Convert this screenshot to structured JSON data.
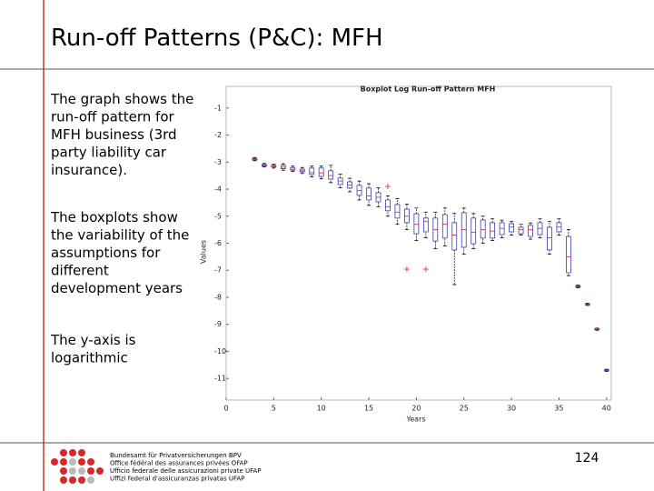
{
  "slide": {
    "title": "Run-off Patterns (P&C): MFH",
    "body": [
      [
        "The graph shows the",
        "run-off pattern for",
        "MFH business (3rd",
        "party liability car",
        "insurance)."
      ],
      [
        "The boxplots show",
        "the variability of the",
        "assumptions for",
        "different",
        "development years"
      ],
      [
        "The y-axis is",
        "logarithmic"
      ]
    ],
    "footer": [
      "Bundesamt für Privatversicherungen BPV",
      "Office fédéral des assurances privées OFAP",
      "Ufficio federale delle assicurazioni private UFAP",
      "Uffizi federal d'assicuranzas privatas UFAP"
    ],
    "page_number": "124"
  },
  "chart_data": {
    "type": "boxplot",
    "title": "Boxplot Log Run-off Pattern MFH",
    "xlabel": "Years",
    "ylabel": "Values",
    "x": [
      3,
      4,
      5,
      6,
      7,
      8,
      9,
      10,
      11,
      12,
      13,
      14,
      15,
      16,
      17,
      18,
      19,
      20,
      21,
      22,
      23,
      24,
      25,
      26,
      27,
      28,
      29,
      30,
      31,
      32,
      33,
      34,
      35,
      36,
      37,
      38,
      39,
      40
    ],
    "whisker_low": [
      -2.95,
      -3.18,
      -3.22,
      -3.3,
      -3.35,
      -3.42,
      -3.55,
      -3.62,
      -3.76,
      -3.95,
      -4.1,
      -4.4,
      -4.6,
      -4.65,
      -5.0,
      -5.3,
      -5.5,
      -5.9,
      -5.8,
      -6.2,
      -6.1,
      -7.53,
      -6.4,
      -6.2,
      -6.0,
      -5.9,
      -5.8,
      -5.7,
      -5.7,
      -5.85,
      -5.8,
      -6.4,
      -5.7,
      -7.2,
      -7.65,
      -8.3,
      -9.22,
      -10.74
    ],
    "q1": [
      -2.92,
      -3.15,
      -3.18,
      -3.24,
      -3.3,
      -3.36,
      -3.46,
      -3.53,
      -3.63,
      -3.83,
      -3.96,
      -4.23,
      -4.4,
      -4.47,
      -4.8,
      -5.07,
      -5.24,
      -5.65,
      -5.58,
      -5.92,
      -5.81,
      -6.25,
      -6.15,
      -6.02,
      -5.81,
      -5.81,
      -5.68,
      -5.58,
      -5.65,
      -5.75,
      -5.68,
      -6.25,
      -5.58,
      -7.09,
      -7.62,
      -8.28,
      -9.2,
      -10.72
    ],
    "median": [
      -2.89,
      -3.12,
      -3.15,
      -3.19,
      -3.26,
      -3.32,
      -3.39,
      -3.4,
      -3.5,
      -3.7,
      -3.85,
      -4.05,
      -4.25,
      -4.3,
      -4.65,
      -4.85,
      -5.0,
      -5.3,
      -5.2,
      -5.5,
      -5.3,
      -5.7,
      -5.5,
      -5.6,
      -5.5,
      -5.55,
      -5.45,
      -5.4,
      -5.5,
      -5.5,
      -5.45,
      -5.8,
      -5.4,
      -6.5,
      -7.6,
      -8.27,
      -9.18,
      -10.7
    ],
    "q3": [
      -2.86,
      -3.09,
      -3.12,
      -3.12,
      -3.2,
      -3.26,
      -3.22,
      -3.22,
      -3.32,
      -3.59,
      -3.73,
      -3.86,
      -3.96,
      -4.13,
      -4.4,
      -4.57,
      -4.74,
      -4.91,
      -5.07,
      -5.07,
      -4.94,
      -5.24,
      -4.87,
      -5.07,
      -5.14,
      -5.24,
      -5.24,
      -5.28,
      -5.41,
      -5.34,
      -5.24,
      -5.41,
      -5.24,
      -5.75,
      -7.58,
      -8.25,
      -9.16,
      -10.68
    ],
    "whisker_high": [
      -2.83,
      -3.05,
      -3.08,
      -3.06,
      -3.15,
      -3.2,
      -3.15,
      -3.15,
      -3.12,
      -3.45,
      -3.6,
      -3.7,
      -3.8,
      -3.95,
      -4.25,
      -4.35,
      -4.55,
      -4.7,
      -4.85,
      -4.85,
      -4.7,
      -4.9,
      -4.7,
      -4.9,
      -5.0,
      -5.1,
      -5.15,
      -5.2,
      -5.3,
      -5.25,
      -5.1,
      -5.2,
      -5.1,
      -5.5,
      -7.55,
      -8.22,
      -9.14,
      -10.66
    ],
    "outliers": {
      "x": [
        17,
        19,
        21
      ],
      "y": [
        -3.9,
        -6.96,
        -6.96
      ]
    },
    "box_color": "#3c3cb4",
    "median_color": "#e03030",
    "xlim": [
      0,
      40.5
    ],
    "ylim": [
      -11.8,
      -0.2
    ],
    "xticks": [
      0,
      5,
      10,
      15,
      20,
      25,
      30,
      35,
      40
    ],
    "yticks": [
      -1,
      -2,
      -3,
      -4,
      -5,
      -6,
      -7,
      -8,
      -9,
      -10,
      -11
    ]
  }
}
